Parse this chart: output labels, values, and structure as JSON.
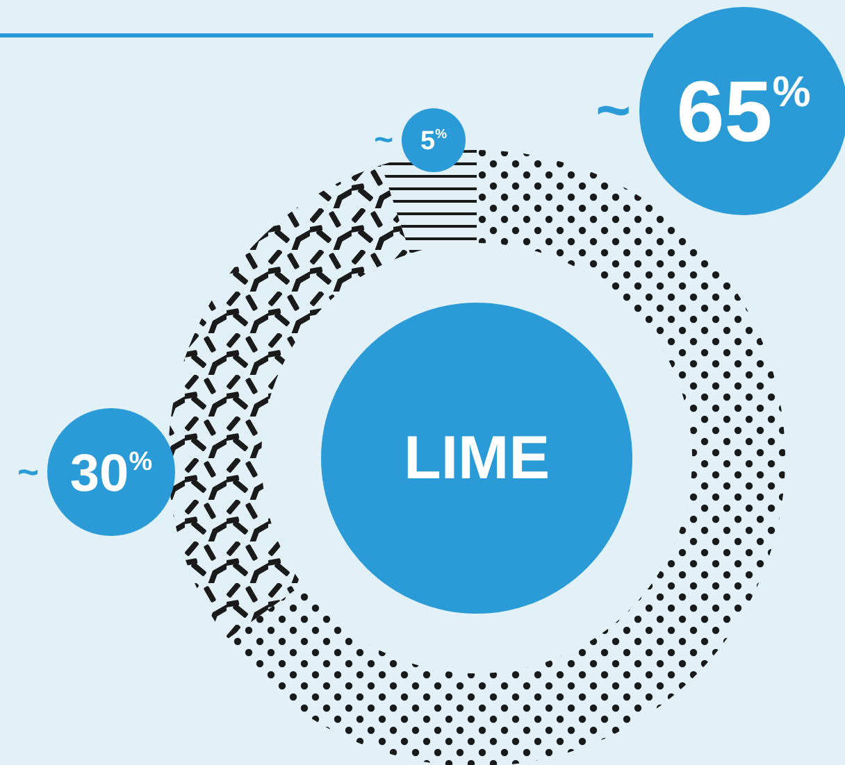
{
  "chart_data": {
    "type": "donut",
    "title": "LIME",
    "categories": [
      null,
      null,
      null
    ],
    "values": [
      65,
      30,
      5
    ],
    "colors": [
      "#1a1a1a",
      "#1a1a1a",
      "#1a1a1a"
    ],
    "value_labels": [
      "~ 65$^{%}$",
      "~ 30$^{%}$",
      "~ 5$^{%}$"
    ]
  }
}
